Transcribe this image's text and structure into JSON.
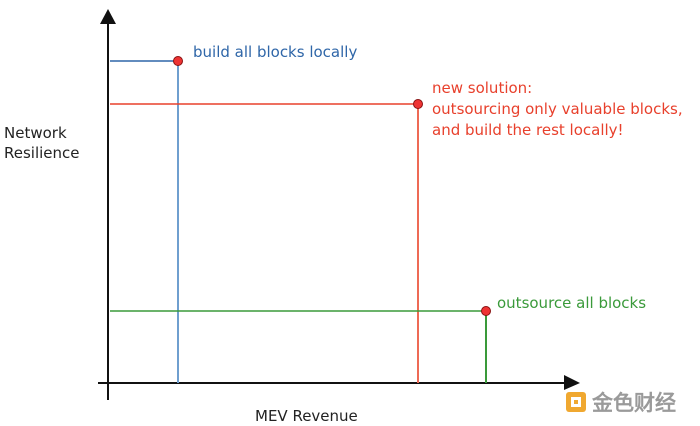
{
  "axes": {
    "y_label_line1": "Network",
    "y_label_line2": "Resilience",
    "x_label": "MEV Revenue"
  },
  "annotations": {
    "blue": "build all blocks locally",
    "red_line1": "new solution:",
    "red_line2": "outsourcing only valuable blocks,",
    "red_line3": "and build the rest locally!",
    "green": "outsource all blocks"
  },
  "watermark": {
    "text": "金色财经"
  },
  "colors": {
    "blue": "#2f66a8",
    "red": "#e8402c",
    "green": "#3a9a3a",
    "axis": "#111111",
    "dot": "#ee3333"
  }
}
